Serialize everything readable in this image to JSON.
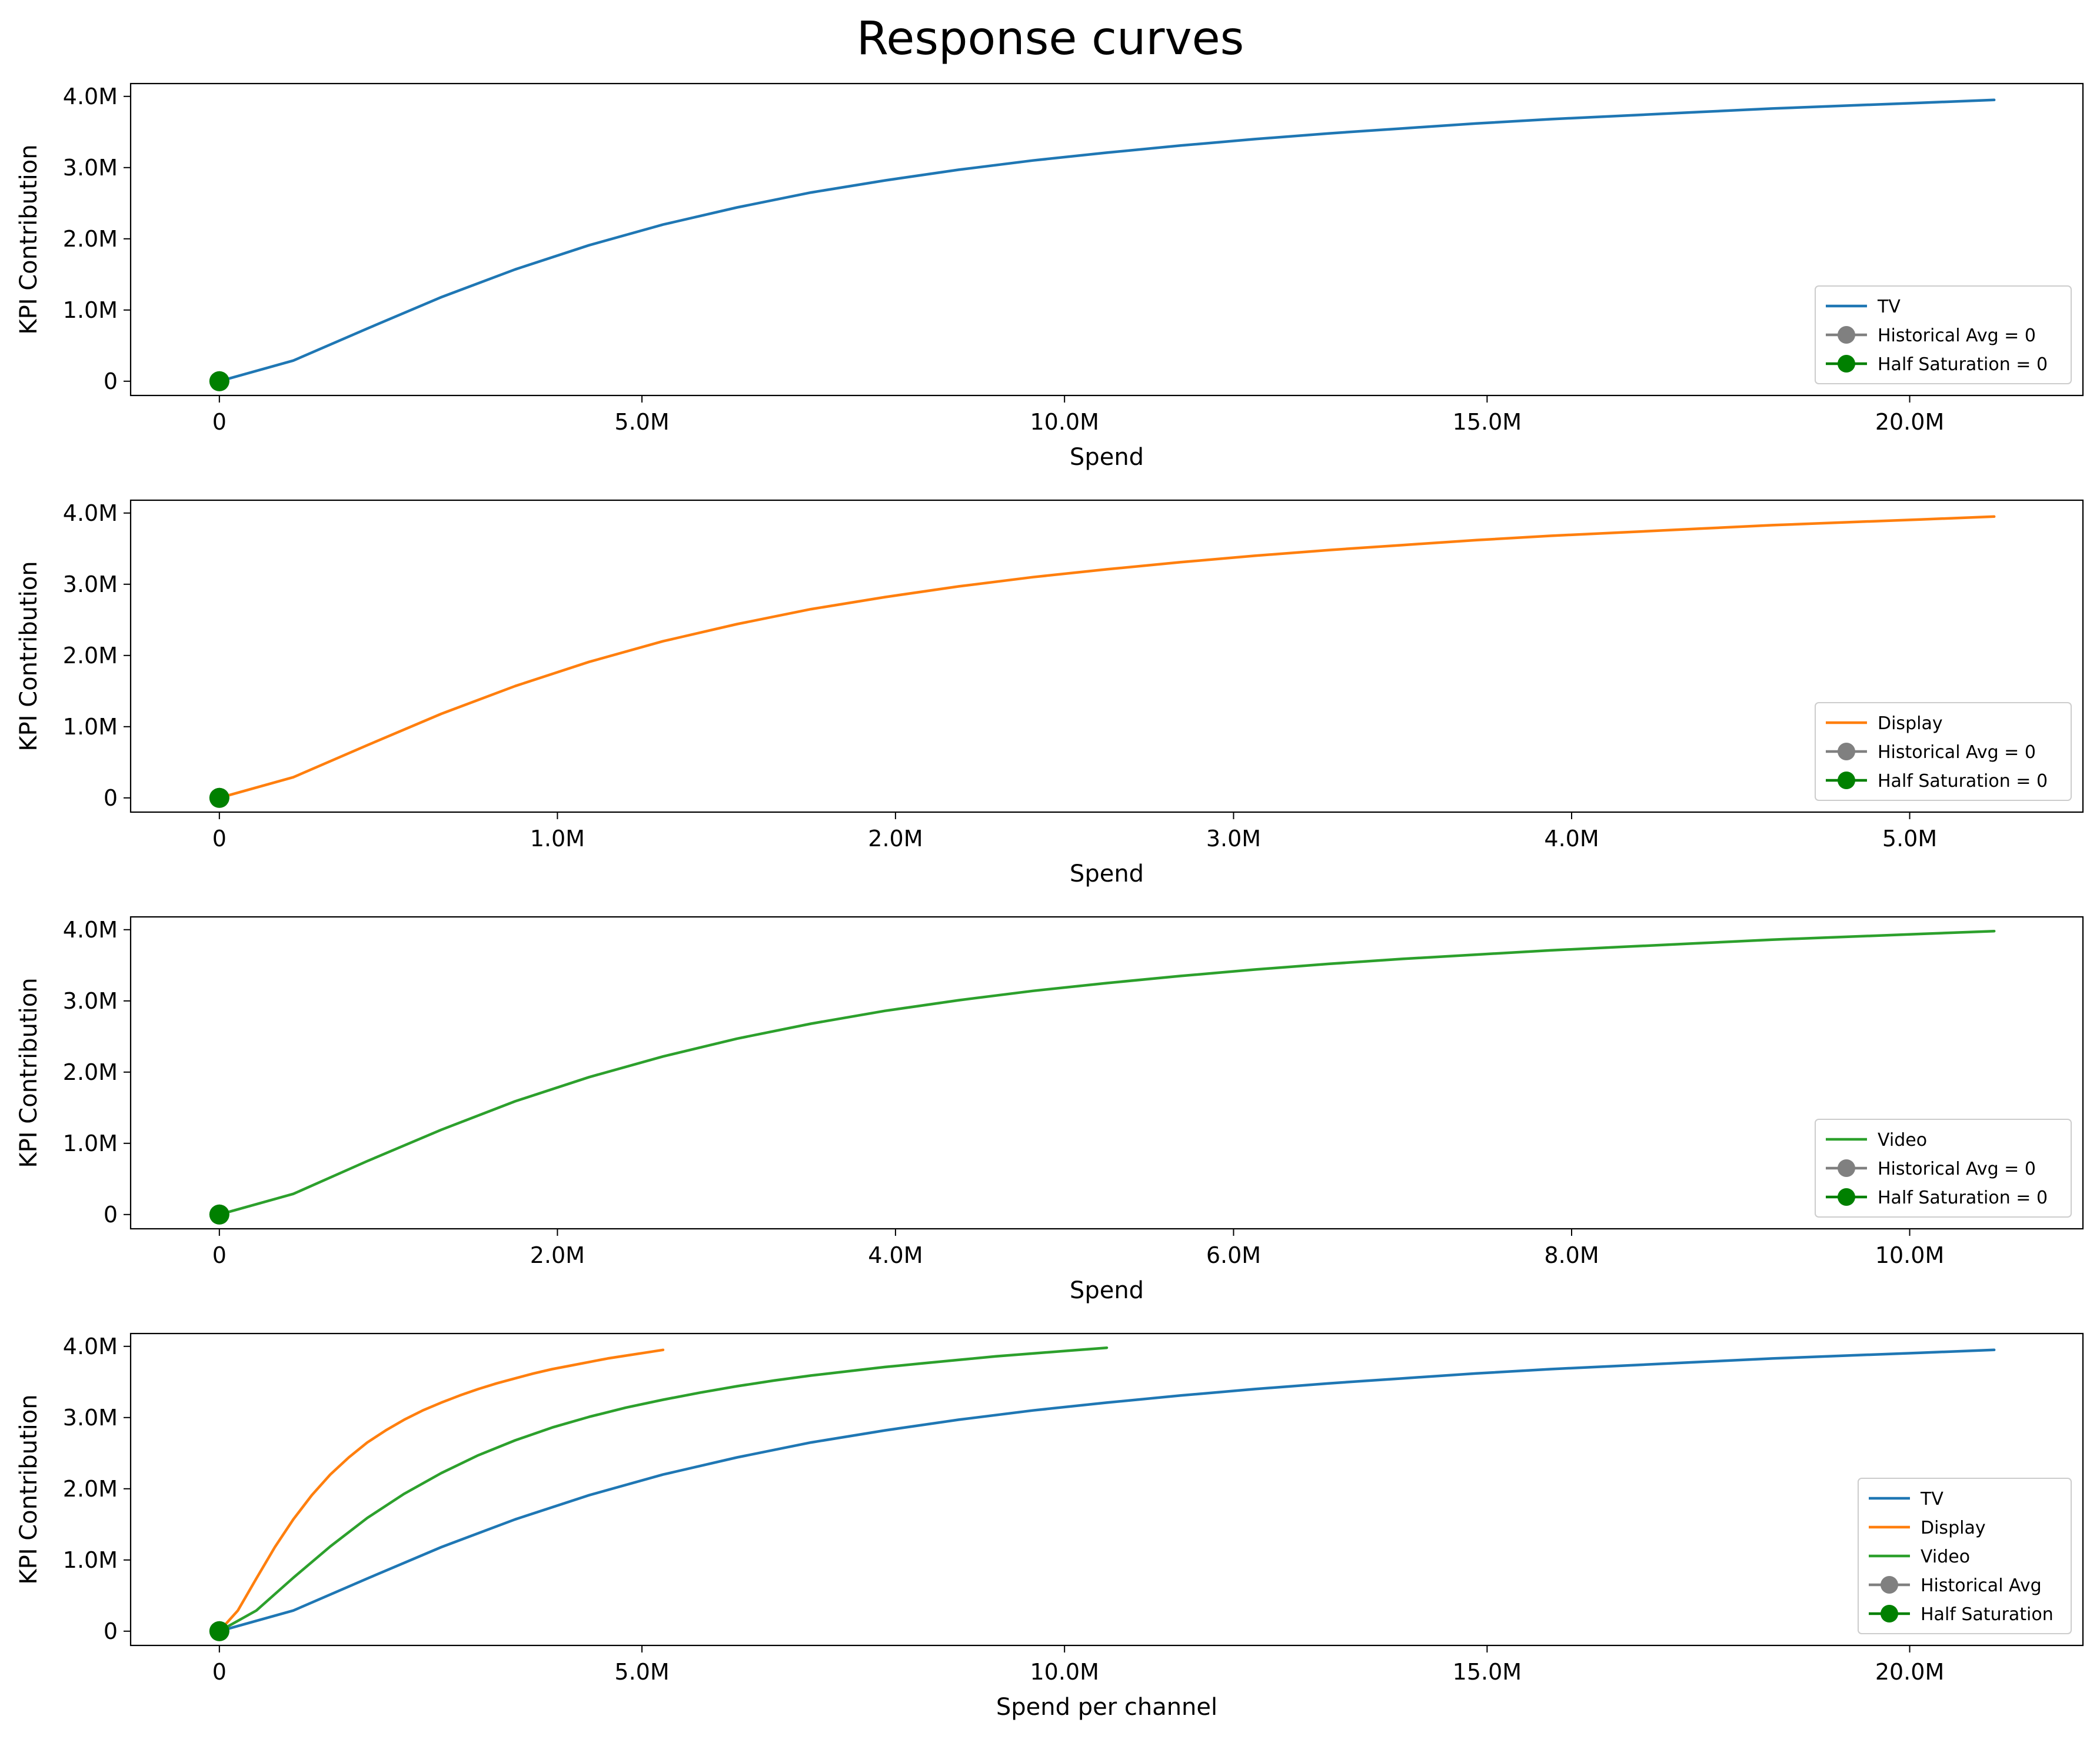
{
  "figure": {
    "title": "Response curves"
  },
  "chart_data": [
    {
      "type": "line",
      "xlabel": "Spend",
      "ylabel": "KPI Contribution",
      "xlim": [
        -1050000,
        22050000
      ],
      "ylim": [
        -200000,
        4180000
      ],
      "xticks": [
        0,
        5000000,
        10000000,
        15000000,
        20000000
      ],
      "xtick_labels": [
        "0",
        "5.0M",
        "10.0M",
        "15.0M",
        "20.0M"
      ],
      "yticks": [
        0,
        1000000,
        2000000,
        3000000,
        4000000
      ],
      "ytick_labels": [
        "0",
        "1.0M",
        "2.0M",
        "3.0M",
        "4.0M"
      ],
      "legend_position": "lower right",
      "series": [
        {
          "name": "TV",
          "color": "#1f77b4",
          "max_spend": 21000000,
          "x": [
            0,
            875000,
            1750000,
            2625000,
            3500000,
            4375000,
            5250000,
            6125000,
            7000000,
            7875000,
            8750000,
            9625000,
            10500000,
            11375000,
            12250000,
            13125000,
            14000000,
            14875000,
            15750000,
            16625000,
            17500000,
            18375000,
            19250000,
            20125000,
            21000000
          ],
          "y": [
            0,
            290000,
            740000,
            1180000,
            1570000,
            1910000,
            2200000,
            2440000,
            2650000,
            2820000,
            2970000,
            3100000,
            3210000,
            3310000,
            3400000,
            3480000,
            3550000,
            3620000,
            3680000,
            3730000,
            3780000,
            3830000,
            3870000,
            3910000,
            3950000
          ]
        }
      ],
      "markers": [
        {
          "label": "Historical Avg = 0",
          "color": "#808080",
          "x": 0,
          "y": 0
        },
        {
          "label": "Half Saturation = 0",
          "color": "#008000",
          "x": 0,
          "y": 0
        }
      ]
    },
    {
      "type": "line",
      "xlabel": "Spend",
      "ylabel": "KPI Contribution",
      "xlim": [
        -262500,
        5512500
      ],
      "ylim": [
        -200000,
        4180000
      ],
      "xticks": [
        0,
        1000000,
        2000000,
        3000000,
        4000000,
        5000000
      ],
      "xtick_labels": [
        "0",
        "1.0M",
        "2.0M",
        "3.0M",
        "4.0M",
        "5.0M"
      ],
      "yticks": [
        0,
        1000000,
        2000000,
        3000000,
        4000000
      ],
      "ytick_labels": [
        "0",
        "1.0M",
        "2.0M",
        "3.0M",
        "4.0M"
      ],
      "legend_position": "lower right",
      "series": [
        {
          "name": "Display",
          "color": "#ff7f0e",
          "max_spend": 5250000,
          "x": [
            0,
            218750,
            437500,
            656250,
            875000,
            1093750,
            1312500,
            1531250,
            1750000,
            1968750,
            2187500,
            2406250,
            2625000,
            2843750,
            3062500,
            3281250,
            3500000,
            3718750,
            3937500,
            4156250,
            4375000,
            4593750,
            4812500,
            5031250,
            5250000
          ],
          "y": [
            0,
            290000,
            740000,
            1180000,
            1570000,
            1910000,
            2200000,
            2440000,
            2650000,
            2820000,
            2970000,
            3100000,
            3210000,
            3310000,
            3400000,
            3480000,
            3550000,
            3620000,
            3680000,
            3730000,
            3780000,
            3830000,
            3870000,
            3910000,
            3950000
          ]
        }
      ],
      "markers": [
        {
          "label": "Historical Avg = 0",
          "color": "#808080",
          "x": 0,
          "y": 0
        },
        {
          "label": "Half Saturation = 0",
          "color": "#008000",
          "x": 0,
          "y": 0
        }
      ]
    },
    {
      "type": "line",
      "xlabel": "Spend",
      "ylabel": "KPI Contribution",
      "xlim": [
        -525000,
        11025000
      ],
      "ylim": [
        -200000,
        4180000
      ],
      "xticks": [
        0,
        2000000,
        4000000,
        6000000,
        8000000,
        10000000
      ],
      "xtick_labels": [
        "0",
        "2.0M",
        "4.0M",
        "6.0M",
        "8.0M",
        "10.0M"
      ],
      "yticks": [
        0,
        1000000,
        2000000,
        3000000,
        4000000
      ],
      "ytick_labels": [
        "0",
        "1.0M",
        "2.0M",
        "3.0M",
        "4.0M"
      ],
      "legend_position": "lower right",
      "series": [
        {
          "name": "Video",
          "color": "#2ca02c",
          "max_spend": 10500000,
          "x": [
            0,
            437500,
            875000,
            1312500,
            1750000,
            2187500,
            2625000,
            3062500,
            3500000,
            3937500,
            4375000,
            4812500,
            5250000,
            5687500,
            6125000,
            6562500,
            7000000,
            7437500,
            7875000,
            8312500,
            8750000,
            9187500,
            9625000,
            10062500,
            10500000
          ],
          "y": [
            0,
            290000,
            750000,
            1190000,
            1590000,
            1930000,
            2220000,
            2470000,
            2680000,
            2860000,
            3010000,
            3140000,
            3250000,
            3350000,
            3440000,
            3520000,
            3590000,
            3650000,
            3710000,
            3760000,
            3810000,
            3860000,
            3900000,
            3940000,
            3980000
          ]
        }
      ],
      "markers": [
        {
          "label": "Historical Avg = 0",
          "color": "#808080",
          "x": 0,
          "y": 0
        },
        {
          "label": "Half Saturation = 0",
          "color": "#008000",
          "x": 0,
          "y": 0
        }
      ]
    },
    {
      "type": "line",
      "xlabel": "Spend per channel",
      "ylabel": "KPI Contribution",
      "xlim": [
        -1050000,
        22050000
      ],
      "ylim": [
        -200000,
        4180000
      ],
      "xticks": [
        0,
        5000000,
        10000000,
        15000000,
        20000000
      ],
      "xtick_labels": [
        "0",
        "5.0M",
        "10.0M",
        "15.0M",
        "20.0M"
      ],
      "yticks": [
        0,
        1000000,
        2000000,
        3000000,
        4000000
      ],
      "ytick_labels": [
        "0",
        "1.0M",
        "2.0M",
        "3.0M",
        "4.0M"
      ],
      "legend_position": "lower right",
      "series": [
        {
          "name": "TV",
          "color": "#1f77b4",
          "x": [
            0,
            875000,
            1750000,
            2625000,
            3500000,
            4375000,
            5250000,
            6125000,
            7000000,
            7875000,
            8750000,
            9625000,
            10500000,
            11375000,
            12250000,
            13125000,
            14000000,
            14875000,
            15750000,
            16625000,
            17500000,
            18375000,
            19250000,
            20125000,
            21000000
          ],
          "y": [
            0,
            290000,
            740000,
            1180000,
            1570000,
            1910000,
            2200000,
            2440000,
            2650000,
            2820000,
            2970000,
            3100000,
            3210000,
            3310000,
            3400000,
            3480000,
            3550000,
            3620000,
            3680000,
            3730000,
            3780000,
            3830000,
            3870000,
            3910000,
            3950000
          ]
        },
        {
          "name": "Display",
          "color": "#ff7f0e",
          "x": [
            0,
            218750,
            437500,
            656250,
            875000,
            1093750,
            1312500,
            1531250,
            1750000,
            1968750,
            2187500,
            2406250,
            2625000,
            2843750,
            3062500,
            3281250,
            3500000,
            3718750,
            3937500,
            4156250,
            4375000,
            4593750,
            4812500,
            5031250,
            5250000
          ],
          "y": [
            0,
            290000,
            740000,
            1180000,
            1570000,
            1910000,
            2200000,
            2440000,
            2650000,
            2820000,
            2970000,
            3100000,
            3210000,
            3310000,
            3400000,
            3480000,
            3550000,
            3620000,
            3680000,
            3730000,
            3780000,
            3830000,
            3870000,
            3910000,
            3950000
          ]
        },
        {
          "name": "Video",
          "color": "#2ca02c",
          "x": [
            0,
            437500,
            875000,
            1312500,
            1750000,
            2187500,
            2625000,
            3062500,
            3500000,
            3937500,
            4375000,
            4812500,
            5250000,
            5687500,
            6125000,
            6562500,
            7000000,
            7437500,
            7875000,
            8312500,
            8750000,
            9187500,
            9625000,
            10062500,
            10500000
          ],
          "y": [
            0,
            290000,
            750000,
            1190000,
            1590000,
            1930000,
            2220000,
            2470000,
            2680000,
            2860000,
            3010000,
            3140000,
            3250000,
            3350000,
            3440000,
            3520000,
            3590000,
            3650000,
            3710000,
            3760000,
            3810000,
            3860000,
            3900000,
            3940000,
            3980000
          ]
        }
      ],
      "markers": [
        {
          "label": "Historical Avg",
          "color": "#808080",
          "x": 0,
          "y": 0
        },
        {
          "label": "Half Saturation",
          "color": "#008000",
          "x": 0,
          "y": 0
        }
      ]
    }
  ]
}
